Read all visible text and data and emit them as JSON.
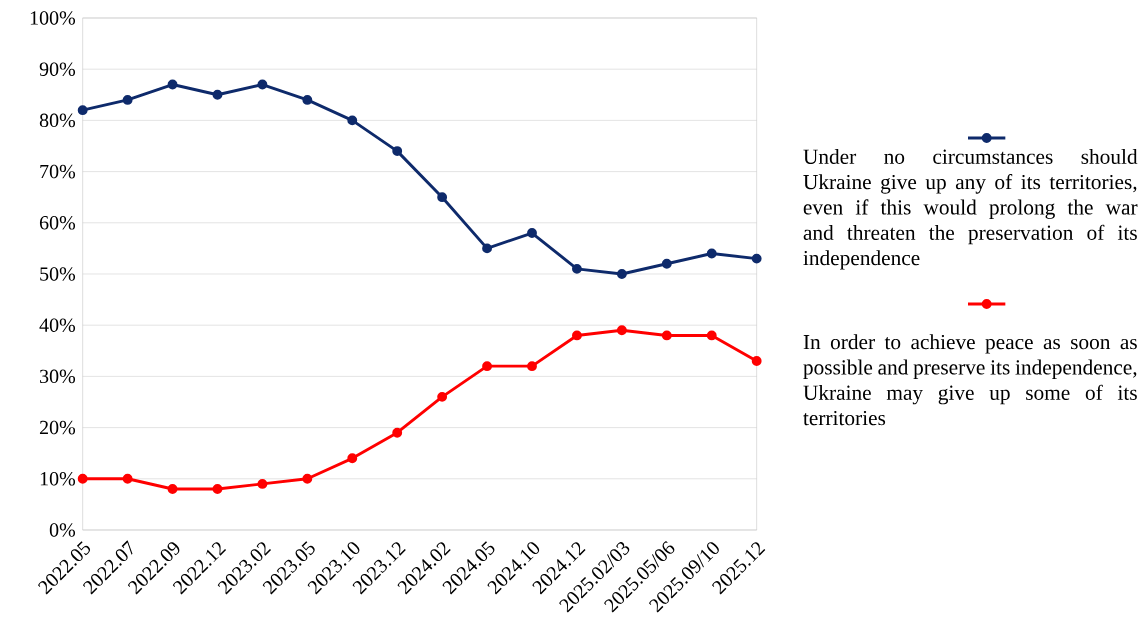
{
  "chart_data": {
    "type": "line",
    "categories": [
      "2022.05",
      "2022.07",
      "2022.09",
      "2022.12",
      "2023.02",
      "2023.05",
      "2023.10",
      "2023.12",
      "2024.02",
      "2024.05",
      "2024.10",
      "2024.12",
      "2025.02/03",
      "2025.05/06",
      "2025.09/10",
      "2025.12"
    ],
    "series": [
      {
        "name": "Under no circumstances should Ukraine give up any of its territories, even if this would prolong the war and threaten the preservation of its independence",
        "color": "#0e2a6b",
        "values": [
          82,
          84,
          87,
          85,
          87,
          84,
          80,
          74,
          65,
          55,
          58,
          51,
          50,
          52,
          54,
          53
        ]
      },
      {
        "name": "In order to achieve peace as soon as possible and preserve its independence, Ukraine may give up some of its territories",
        "color": "#ff0000",
        "values": [
          10,
          10,
          8,
          8,
          9,
          10,
          14,
          19,
          26,
          32,
          32,
          38,
          39,
          38,
          38,
          33
        ]
      }
    ],
    "ylim": [
      0,
      100
    ],
    "yticks": [
      {
        "value": 0,
        "label": "0%"
      },
      {
        "value": 10,
        "label": "10%"
      },
      {
        "value": 20,
        "label": "20%"
      },
      {
        "value": 30,
        "label": "30%"
      },
      {
        "value": 40,
        "label": "40%"
      },
      {
        "value": 50,
        "label": "50%"
      },
      {
        "value": 60,
        "label": "60%"
      },
      {
        "value": 70,
        "label": "70%"
      },
      {
        "value": 80,
        "label": "80%"
      },
      {
        "value": 90,
        "label": "90%"
      },
      {
        "value": 100,
        "label": "100%"
      }
    ],
    "grid": "y",
    "legend": "right",
    "marker": "circle",
    "line_style": "solid"
  }
}
